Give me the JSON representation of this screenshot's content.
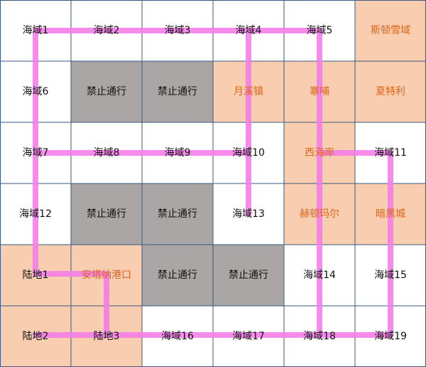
{
  "grid": {
    "rows": [
      [
        "海域1",
        "海域2",
        "海域3",
        "海域4",
        "海域5",
        "斯顿雪域"
      ],
      [
        "海域6",
        "禁止通行",
        "禁止通行",
        "月溪镇",
        "寨哺",
        "夏特利"
      ],
      [
        "海域7",
        "海域8",
        "海域9",
        "海域10",
        "西海岸",
        "海域11"
      ],
      [
        "海域12",
        "禁止通行",
        "禁止通行",
        "海域13",
        "赫顿玛尔",
        "暗黑城"
      ],
      [
        "陆地1",
        "安塔纳港口",
        "禁止通行",
        "禁止通行",
        "海域14",
        "海域15"
      ],
      [
        "陆地2",
        "陆地3",
        "海域16",
        "海域17",
        "海域18",
        "海域19"
      ]
    ]
  }
}
